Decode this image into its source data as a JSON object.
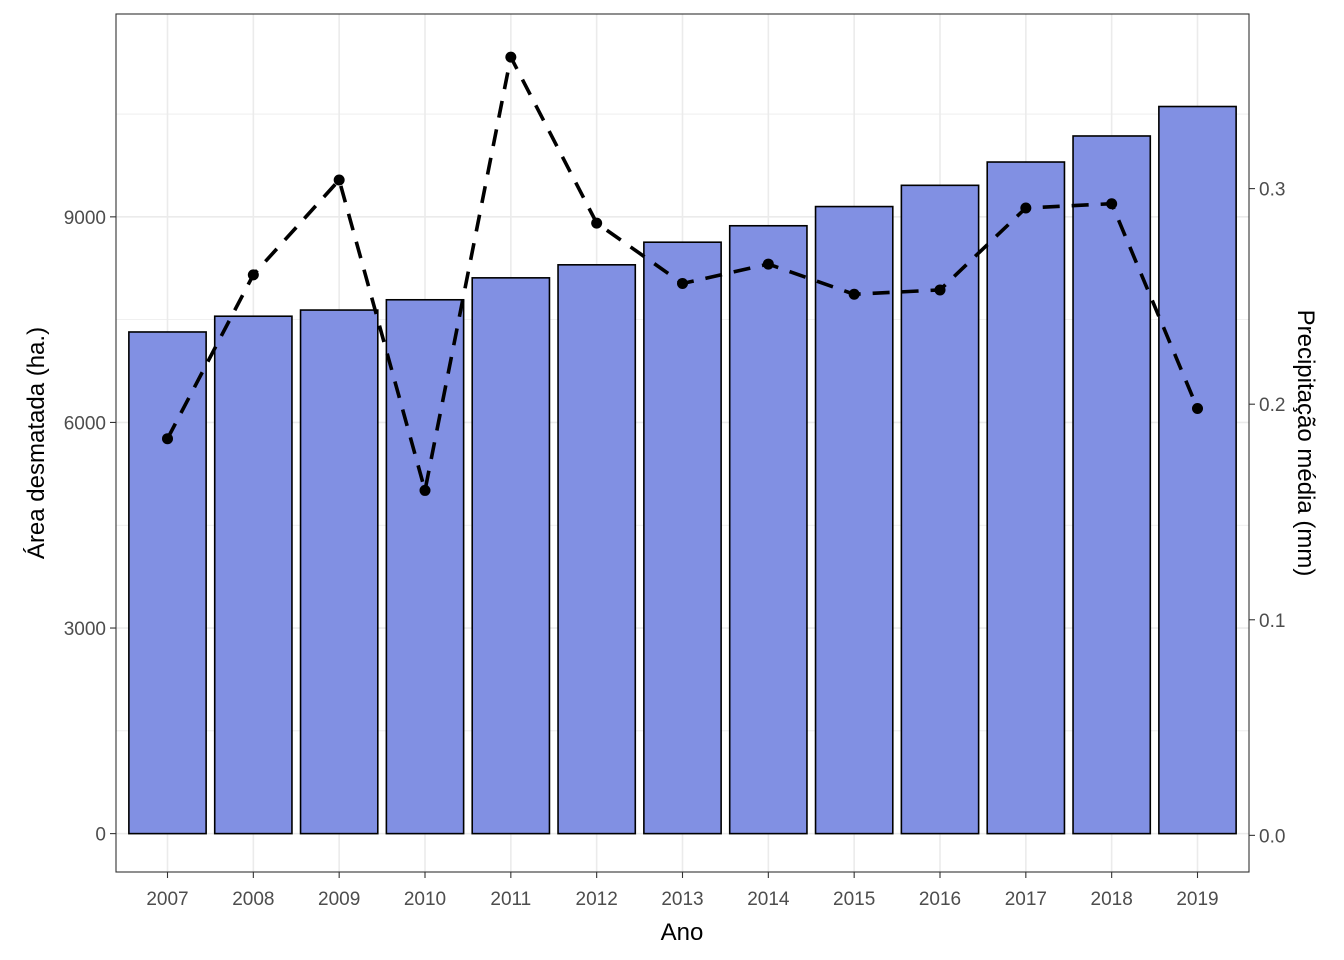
{
  "chart_data": {
    "type": "bar",
    "categories": [
      "2007",
      "2008",
      "2009",
      "2010",
      "2011",
      "2012",
      "2013",
      "2014",
      "2015",
      "2016",
      "2017",
      "2018",
      "2019"
    ],
    "series": [
      {
        "type": "bar",
        "axis": "left",
        "color": "#8190e3",
        "values": [
          7320,
          7550,
          7640,
          7790,
          8110,
          8300,
          8630,
          8870,
          9150,
          9460,
          9800,
          10180,
          10610
        ]
      },
      {
        "type": "line",
        "axis": "right",
        "line_style": "dashed",
        "color": "#000000",
        "values": [
          0.184,
          0.26,
          0.304,
          0.16,
          0.361,
          0.284,
          0.256,
          0.265,
          0.251,
          0.253,
          0.291,
          0.293,
          0.198
        ]
      }
    ],
    "xlabel": "Ano",
    "ylabel": "Área desmatada (ha.)",
    "y2label": "Precipitação média (mm)",
    "ylim": [
      -560,
      11960
    ],
    "y2lim": [
      -0.017,
      0.381
    ],
    "yticks": [
      "0",
      "3000",
      "6000",
      "9000"
    ],
    "y2ticks": [
      "0.0",
      "0.1",
      "0.2",
      "0.3"
    ],
    "grid": true,
    "legend": "none"
  }
}
